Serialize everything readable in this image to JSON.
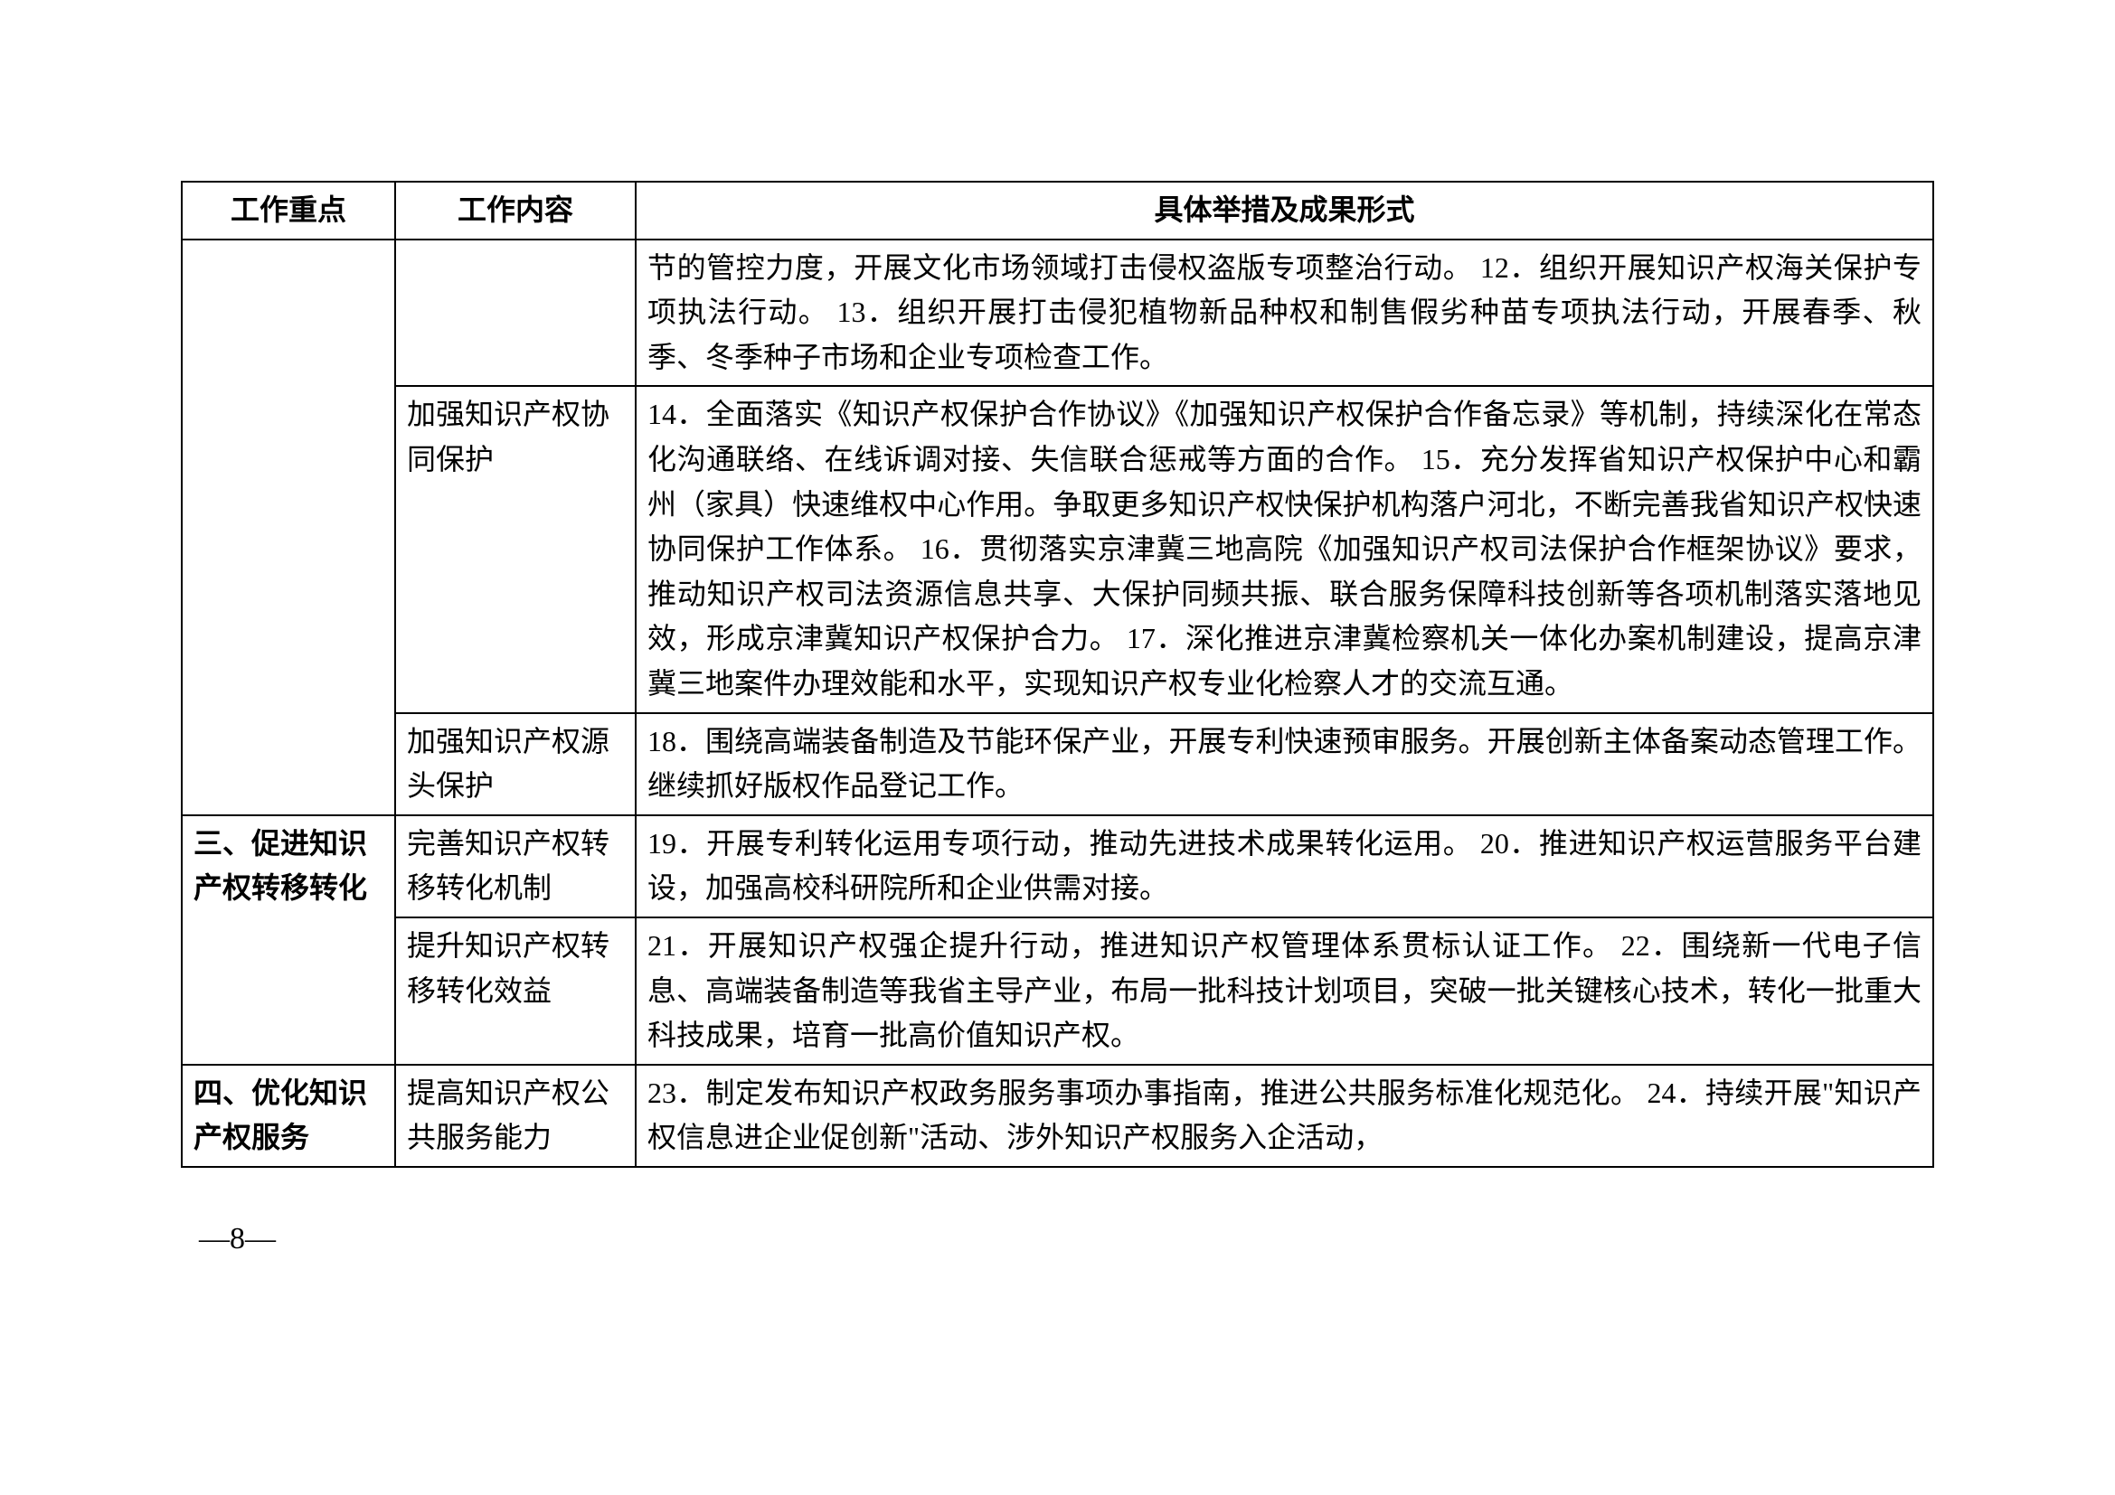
{
  "headers": {
    "col1": "工作重点",
    "col2": "工作内容",
    "col3": "具体举措及成果形式"
  },
  "rows": [
    {
      "focus": "",
      "content": "",
      "details": "节的管控力度，开展文化市场领域打击侵权盗版专项整治行动。\n12．组织开展知识产权海关保护专项执法行动。\n13．组织开展打击侵犯植物新品种权和制售假劣种苗专项执法行动，开展春季、秋季、冬季种子市场和企业专项检查工作。"
    },
    {
      "focus": "",
      "content": "加强知识产权协同保护",
      "details": "14．全面落实《知识产权保护合作协议》《加强知识产权保护合作备忘录》等机制，持续深化在常态化沟通联络、在线诉调对接、失信联合惩戒等方面的合作。\n15．充分发挥省知识产权保护中心和霸州（家具）快速维权中心作用。争取更多知识产权快保护机构落户河北，不断完善我省知识产权快速协同保护工作体系。\n16．贯彻落实京津冀三地高院《加强知识产权司法保护合作框架协议》要求，推动知识产权司法资源信息共享、大保护同频共振、联合服务保障科技创新等各项机制落实落地见效，形成京津冀知识产权保护合力。\n17．深化推进京津冀检察机关一体化办案机制建设，提高京津冀三地案件办理效能和水平，实现知识产权专业化检察人才的交流互通。"
    },
    {
      "focus": "",
      "content": "加强知识产权源头保护",
      "details": "18．围绕高端装备制造及节能环保产业，开展专利快速预审服务。开展创新主体备案动态管理工作。继续抓好版权作品登记工作。"
    },
    {
      "focus": "三、促进知识产权转移转化",
      "content": "完善知识产权转移转化机制",
      "details": "19．开展专利转化运用专项行动，推动先进技术成果转化运用。\n20．推进知识产权运营服务平台建设，加强高校科研院所和企业供需对接。"
    },
    {
      "focus": "",
      "content": "提升知识产权转移转化效益",
      "details": "21．开展知识产权强企提升行动，推进知识产权管理体系贯标认证工作。\n22．围绕新一代电子信息、高端装备制造等我省主导产业，布局一批科技计划项目，突破一批关键核心技术，转化一批重大科技成果，培育一批高价值知识产权。"
    },
    {
      "focus": "四、优化知识产权服务",
      "content": "提高知识产权公共服务能力",
      "details": "23．制定发布知识产权政务服务事项办事指南，推进公共服务标准化规范化。\n24．持续开展\"知识产权信息进企业促创新\"活动、涉外知识产权服务入企活动，"
    }
  ],
  "page_number": "—8—"
}
